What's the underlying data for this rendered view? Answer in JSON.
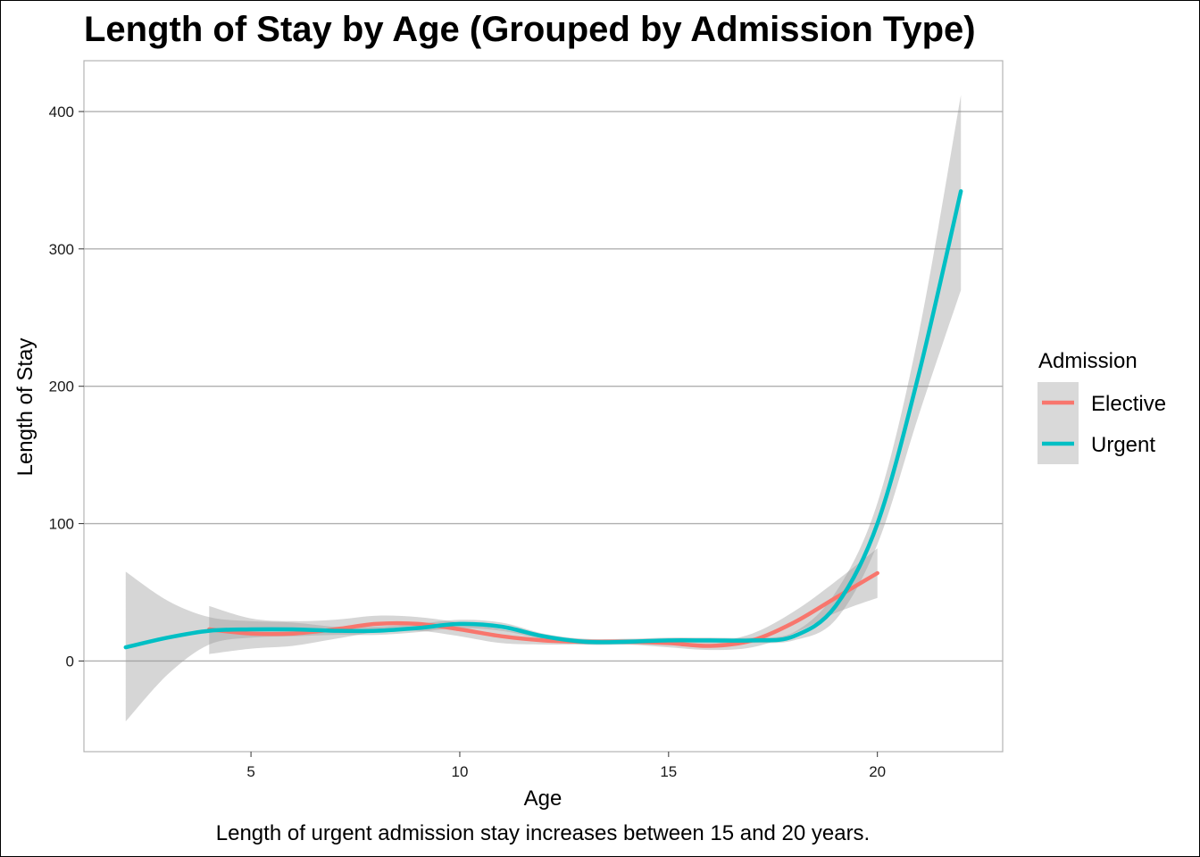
{
  "chart_data": {
    "type": "line",
    "title": "Length of Stay by Age (Grouped by Admission Type)",
    "xlabel": "Age",
    "ylabel": "Length of Stay",
    "caption": "Length of urgent admission stay increases between 15 and 20 years.",
    "xlim": [
      1.0,
      23.0
    ],
    "ylim": [
      -66,
      437
    ],
    "x_ticks": [
      5,
      10,
      15,
      20
    ],
    "y_ticks": [
      0,
      100,
      200,
      300,
      400
    ],
    "grid": "horizontal major",
    "legend": {
      "title": "Admission",
      "position": "right"
    },
    "series": [
      {
        "name": "Elective",
        "color": "#F8766D",
        "x": [
          4,
          5,
          6,
          7,
          8,
          9,
          10,
          11,
          12,
          13,
          14,
          15,
          16,
          17,
          18,
          19,
          20
        ],
        "y": [
          23,
          20,
          20,
          23,
          27,
          27,
          23,
          18,
          15,
          14,
          14,
          13,
          11,
          15,
          28,
          46,
          64
        ],
        "ci_lower": [
          5,
          9,
          11,
          16,
          21,
          22,
          18,
          13,
          12,
          12,
          12,
          10,
          8,
          10,
          20,
          35,
          46
        ],
        "ci_upper": [
          40,
          31,
          29,
          30,
          33,
          32,
          28,
          23,
          18,
          16,
          16,
          16,
          14,
          20,
          36,
          58,
          82
        ]
      },
      {
        "name": "Urgent",
        "color": "#00BFC4",
        "x": [
          2,
          3,
          4,
          5,
          6,
          7,
          8,
          9,
          10,
          11,
          12,
          13,
          14,
          15,
          16,
          17,
          18,
          19,
          20,
          21,
          22
        ],
        "y": [
          10,
          17,
          22,
          23,
          23,
          22,
          22,
          24,
          27,
          25,
          18,
          14,
          14,
          15,
          15,
          15,
          18,
          40,
          100,
          210,
          342
        ],
        "ci_lower": [
          -44,
          -10,
          12,
          17,
          18,
          19,
          19,
          21,
          24,
          22,
          16,
          12,
          12,
          13,
          13,
          13,
          15,
          30,
          85,
          180,
          270
        ],
        "ci_upper": [
          65,
          44,
          32,
          29,
          28,
          25,
          25,
          27,
          30,
          28,
          20,
          16,
          16,
          17,
          17,
          17,
          21,
          50,
          115,
          240,
          412
        ]
      }
    ]
  }
}
